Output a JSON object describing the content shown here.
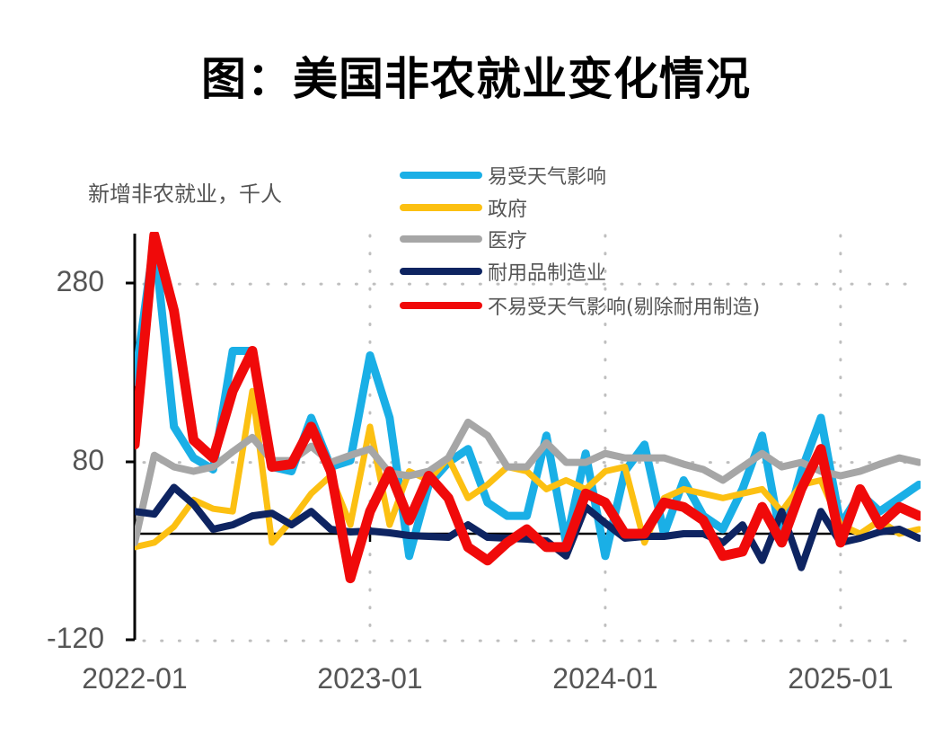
{
  "title": "图：美国非农就业变化情况",
  "chart_data": {
    "type": "line",
    "title": "图：美国非农就业变化情况",
    "ylabel": "新增非农就业，千人",
    "xlabel": "",
    "ylim": [
      -120,
      340
    ],
    "yticks": [
      280,
      80,
      -120
    ],
    "xticks": [
      "2022-01",
      "2023-01",
      "2024-01",
      "2025-01"
    ],
    "grid": "dotted",
    "legend_position": "top-right",
    "x": [
      "2022-01",
      "2022-02",
      "2022-03",
      "2022-04",
      "2022-05",
      "2022-06",
      "2022-07",
      "2022-08",
      "2022-09",
      "2022-10",
      "2022-11",
      "2022-12",
      "2023-01",
      "2023-02",
      "2023-03",
      "2023-04",
      "2023-05",
      "2023-06",
      "2023-07",
      "2023-08",
      "2023-09",
      "2023-10",
      "2023-11",
      "2023-12",
      "2024-01",
      "2024-02",
      "2024-03",
      "2024-04",
      "2024-05",
      "2024-06",
      "2024-07",
      "2024-08",
      "2024-09",
      "2024-10",
      "2024-11",
      "2024-12",
      "2025-01",
      "2025-02",
      "2025-03",
      "2025-04",
      "2025-05"
    ],
    "series": [
      {
        "name": "易受天气影响",
        "color": "#1AAFE6",
        "values": [
          170,
          330,
          120,
          85,
          72,
          205,
          205,
          75,
          70,
          130,
          75,
          82,
          200,
          130,
          -25,
          55,
          80,
          95,
          35,
          20,
          20,
          110,
          -10,
          90,
          -25,
          70,
          100,
          0,
          60,
          20,
          5,
          50,
          110,
          -10,
          70,
          130,
          10,
          45,
          25,
          40,
          55
        ]
      },
      {
        "name": "政府",
        "color": "#FCC012",
        "values": [
          -15,
          -10,
          8,
          38,
          28,
          25,
          160,
          -10,
          15,
          45,
          65,
          10,
          120,
          10,
          70,
          60,
          85,
          40,
          55,
          75,
          70,
          50,
          60,
          50,
          70,
          75,
          -10,
          40,
          50,
          45,
          40,
          45,
          50,
          25,
          55,
          60,
          10,
          0,
          15,
          0,
          5
        ]
      },
      {
        "name": "医疗",
        "color": "#A6A6A6",
        "values": [
          -10,
          88,
          75,
          70,
          75,
          92,
          108,
          82,
          82,
          98,
          80,
          88,
          95,
          68,
          65,
          70,
          85,
          125,
          110,
          75,
          75,
          102,
          80,
          80,
          90,
          85,
          85,
          85,
          78,
          72,
          60,
          75,
          90,
          75,
          80,
          70,
          65,
          70,
          78,
          85,
          80
        ]
      },
      {
        "name": "耐用品制造业",
        "color": "#0E2461",
        "values": [
          25,
          22,
          52,
          33,
          5,
          10,
          20,
          23,
          10,
          25,
          5,
          2,
          3,
          1,
          -2,
          -3,
          -4,
          10,
          -4,
          -5,
          -6,
          -8,
          -25,
          30,
          12,
          -5,
          -3,
          -3,
          0,
          0,
          -10,
          10,
          -30,
          25,
          -38,
          25,
          -10,
          -5,
          2,
          5,
          -5
        ]
      },
      {
        "name": "不易受天气影响(剔除耐用制造)",
        "color": "#F00A0A",
        "values": [
          100,
          335,
          250,
          105,
          85,
          160,
          205,
          75,
          78,
          120,
          70,
          -50,
          25,
          70,
          15,
          65,
          40,
          -15,
          -30,
          -10,
          5,
          -15,
          -15,
          45,
          35,
          0,
          0,
          35,
          30,
          15,
          -25,
          -20,
          30,
          -10,
          50,
          95,
          -10,
          50,
          10,
          30,
          20
        ]
      }
    ]
  },
  "legend": [
    {
      "label": "易受天气影响",
      "color": "#1AAFE6"
    },
    {
      "label": "政府",
      "color": "#FCC012"
    },
    {
      "label": "医疗",
      "color": "#A6A6A6"
    },
    {
      "label": "耐用品制造业",
      "color": "#0E2461"
    },
    {
      "label": "不易受天气影响(剔除耐用制造)",
      "color": "#F00A0A"
    }
  ],
  "axis": {
    "ylabel": "新增非农就业，千人",
    "yticks": [
      "280",
      "80",
      "-120"
    ],
    "xticks": [
      "2022-01",
      "2023-01",
      "2024-01",
      "2025-01"
    ]
  }
}
